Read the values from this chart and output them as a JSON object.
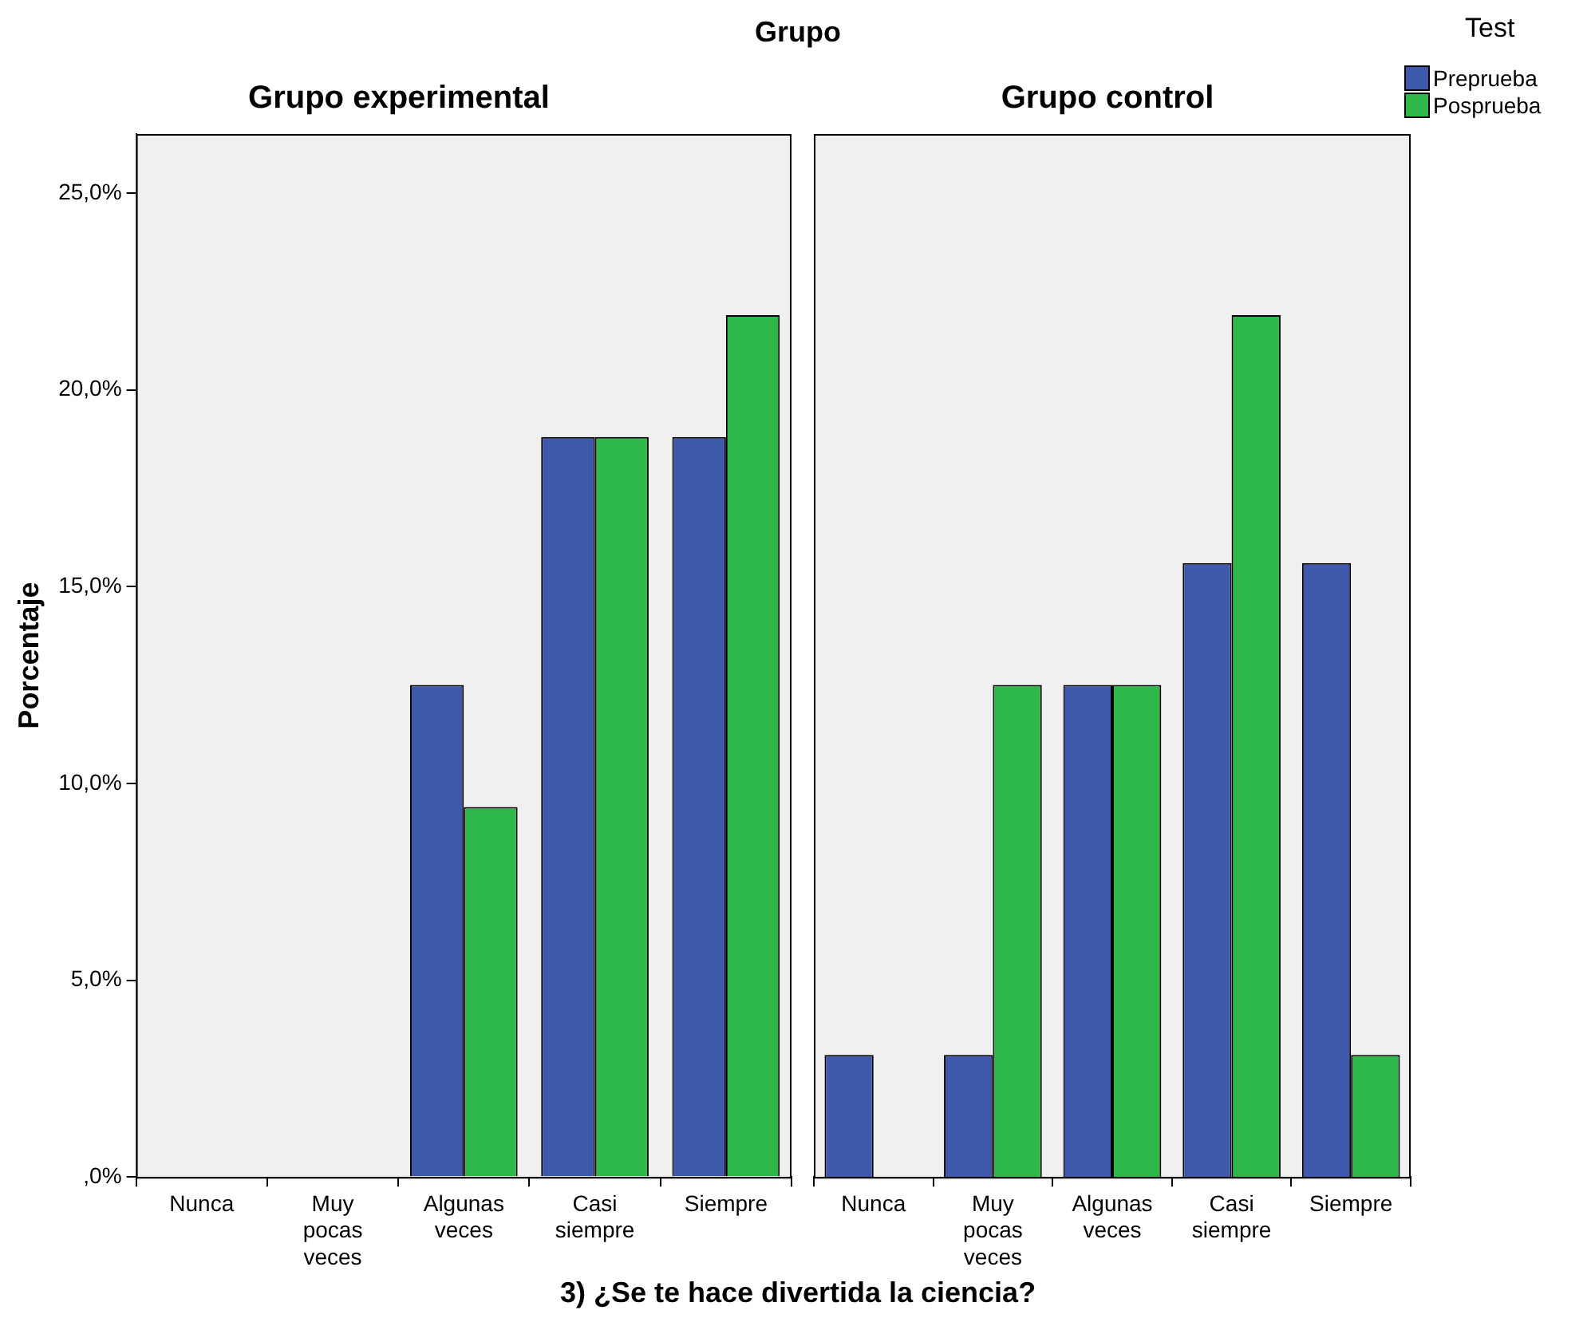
{
  "chart_data": [
    {
      "type": "bar",
      "title": "Grupo experimental",
      "ylabel": "Porcentaje",
      "xlabel": "3) ¿Se te hace divertida la ciencia?",
      "annotations": [
        "Grupo"
      ],
      "categories": [
        "Nunca",
        "Muy pocas veces",
        "Algunas veces",
        "Casi siempre",
        "Siempre"
      ],
      "series": [
        {
          "name": "Preprueba",
          "color": "#3e58ac",
          "values": [
            0,
            0,
            12.5,
            18.8,
            18.8
          ]
        },
        {
          "name": "Posprueba",
          "color": "#2fb84a",
          "values": [
            0,
            0,
            9.4,
            18.8,
            21.9
          ]
        }
      ],
      "ylim": [
        0,
        26.5
      ],
      "yticks": [
        {
          "value": 0,
          "label": ",0%"
        },
        {
          "value": 5,
          "label": "5,0%"
        },
        {
          "value": 10,
          "label": "10,0%"
        },
        {
          "value": 15,
          "label": "15,0%"
        },
        {
          "value": 20,
          "label": "20,0%"
        },
        {
          "value": 25,
          "label": "25,0%"
        }
      ],
      "grid": false,
      "legend_title": "Test",
      "legend": "top right"
    },
    {
      "type": "bar",
      "title": "Grupo control",
      "tick_labels": "x",
      "categories": [
        "Nunca",
        "Muy pocas veces",
        "Algunas veces",
        "Casi siempre",
        "Siempre"
      ],
      "series": [
        {
          "color": "#3e58ac",
          "values": [
            3.1,
            3.1,
            12.5,
            15.6,
            15.6
          ]
        },
        {
          "color": "#2fb84a",
          "values": [
            0,
            12.5,
            12.5,
            21.9,
            3.1
          ]
        }
      ],
      "ylim": [
        0,
        26.5
      ],
      "grid": false
    }
  ]
}
